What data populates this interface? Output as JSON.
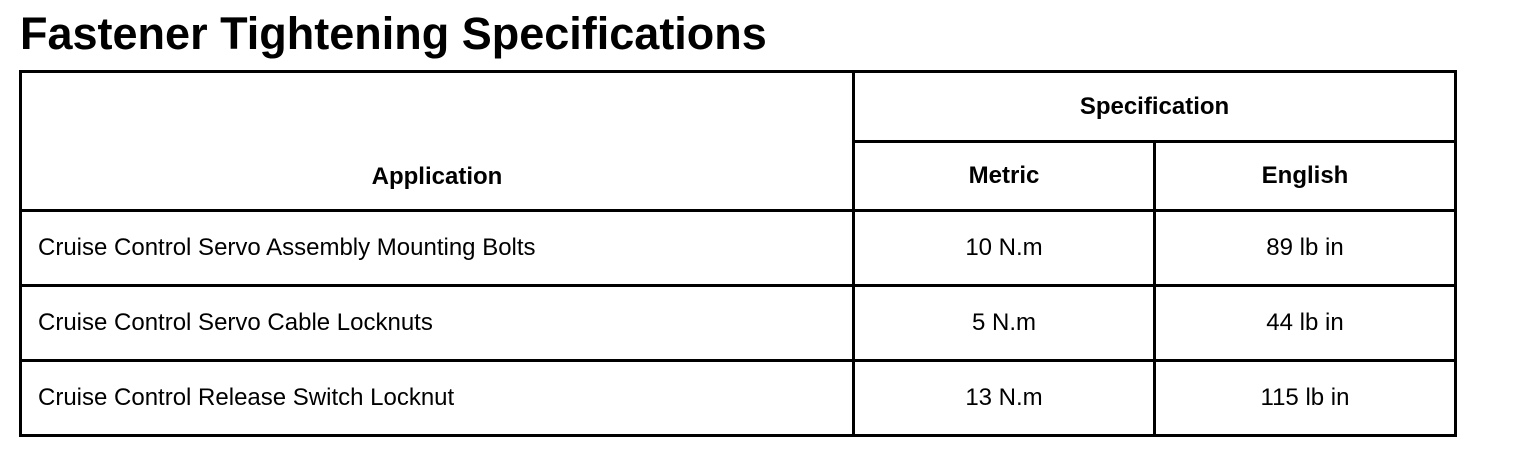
{
  "title": "Fastener Tightening Specifications",
  "table": {
    "headers": {
      "application": "Application",
      "specification": "Specification",
      "metric": "Metric",
      "english": "English"
    },
    "rows": [
      {
        "application": "Cruise Control Servo Assembly Mounting Bolts",
        "metric": "10 N.m",
        "english": "89 lb in"
      },
      {
        "application": "Cruise Control Servo Cable Locknuts",
        "metric": "5 N.m",
        "english": "44 lb in"
      },
      {
        "application": "Cruise Control Release Switch Locknut",
        "metric": "13 N.m",
        "english": "115 lb in"
      }
    ]
  }
}
